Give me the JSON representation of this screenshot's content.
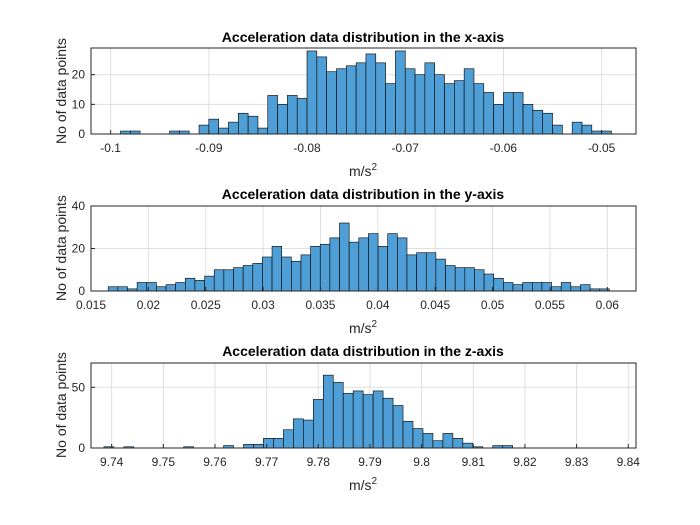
{
  "chart_data": [
    {
      "type": "bar",
      "title": "Acceleration data distribution in the x-axis",
      "xlabel": "m/s",
      "xlabel_superscript": "2",
      "ylabel": "No of data points",
      "xlim": [
        -0.102,
        -0.0465
      ],
      "ylim": [
        0,
        29
      ],
      "x_ticks": [
        -0.1,
        -0.09,
        -0.08,
        -0.07,
        -0.06,
        -0.05
      ],
      "x_tick_labels": [
        "-0.1",
        "-0.09",
        "-0.08",
        "-0.07",
        "-0.06",
        "-0.05"
      ],
      "y_ticks": [
        0,
        10,
        20
      ],
      "y_tick_labels": [
        "0",
        "10",
        "20"
      ],
      "bin_start": -0.099,
      "bin_width": 0.001,
      "counts": [
        1,
        1,
        0,
        0,
        0,
        1,
        1,
        0,
        3,
        5,
        2,
        4,
        7,
        6,
        2,
        13,
        10,
        13,
        12,
        28,
        26,
        21,
        22,
        23,
        24,
        27,
        24,
        17,
        28,
        22,
        20,
        24,
        20,
        17,
        18,
        22,
        17,
        14,
        10,
        14,
        14,
        10,
        8,
        7,
        3,
        0,
        4,
        3,
        1,
        1
      ]
    },
    {
      "type": "bar",
      "title": "Acceleration data distribution in the y-axis",
      "xlabel": "m/s",
      "xlabel_superscript": "2",
      "ylabel": "No of data points",
      "xlim": [
        0.015,
        0.0625
      ],
      "ylim": [
        0,
        40
      ],
      "x_ticks": [
        0.015,
        0.02,
        0.025,
        0.03,
        0.035,
        0.04,
        0.045,
        0.05,
        0.055,
        0.06
      ],
      "x_tick_labels": [
        "0.015",
        "0.02",
        "0.025",
        "0.03",
        "0.035",
        "0.04",
        "0.045",
        "0.05",
        "0.055",
        "0.06"
      ],
      "y_ticks": [
        0,
        20,
        40
      ],
      "y_tick_labels": [
        "0",
        "20",
        "40"
      ],
      "bin_start": 0.0165,
      "bin_width": 0.00084,
      "counts": [
        2,
        2,
        1,
        4,
        4,
        2,
        3,
        4,
        6,
        5,
        7,
        10,
        10,
        11,
        12,
        13,
        16,
        21,
        16,
        14,
        17,
        21,
        22,
        25,
        32,
        23,
        25,
        27,
        21,
        27,
        25,
        17,
        18,
        18,
        15,
        12,
        11,
        11,
        10,
        8,
        6,
        4,
        3,
        4,
        4,
        4,
        2,
        4,
        2,
        3,
        1,
        1
      ]
    },
    {
      "type": "bar",
      "title": "Acceleration data distribution in the z-axis",
      "xlabel": "m/s",
      "xlabel_superscript": "2",
      "ylabel": "No of data points",
      "xlim": [
        9.736,
        9.8415
      ],
      "ylim": [
        0,
        70
      ],
      "x_ticks": [
        9.74,
        9.75,
        9.76,
        9.77,
        9.78,
        9.79,
        9.8,
        9.81,
        9.82,
        9.83,
        9.84
      ],
      "x_tick_labels": [
        "9.74",
        "9.75",
        "9.76",
        "9.77",
        "9.78",
        "9.79",
        "9.8",
        "9.81",
        "9.82",
        "9.83",
        "9.84"
      ],
      "y_ticks": [
        0,
        50
      ],
      "y_tick_labels": [
        "0",
        "50"
      ],
      "bin_start": 9.7385,
      "bin_width": 0.00193,
      "counts": [
        1,
        0,
        1,
        0,
        0,
        0,
        0,
        0,
        1,
        0,
        0,
        0,
        2,
        0,
        3,
        3,
        8,
        8,
        15,
        24,
        23,
        40,
        60,
        54,
        45,
        47,
        44,
        47,
        41,
        35,
        22,
        16,
        12,
        6,
        12,
        8,
        4,
        1,
        0,
        2,
        2,
        0,
        0,
        0,
        0,
        0,
        0,
        0,
        0,
        0,
        0,
        0,
        0,
        0,
        0,
        0,
        0,
        0,
        0,
        0,
        0,
        0,
        0,
        0,
        0,
        0,
        1
      ]
    }
  ]
}
